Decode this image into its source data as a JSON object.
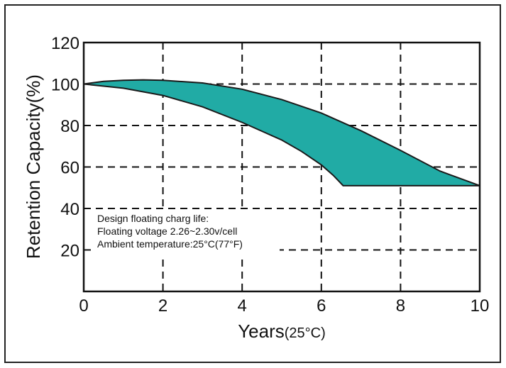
{
  "chart_data": {
    "type": "area",
    "title": "",
    "xlabel": "Years",
    "xlabel_unit": "(25°C)",
    "ylabel": "Retention Capacity(%)",
    "xlim": [
      0,
      10
    ],
    "ylim": [
      0,
      120
    ],
    "xticks": [
      0,
      2,
      4,
      6,
      8,
      10
    ],
    "xtick_labels": [
      "0",
      "2",
      "4",
      "6",
      "8",
      "10"
    ],
    "yticks": [
      20,
      40,
      60,
      80,
      100,
      120
    ],
    "ytick_labels": [
      "20",
      "40",
      "60",
      "80",
      "100",
      "120"
    ],
    "grid": true,
    "fill_color": "#21aba5",
    "upper_curve": {
      "x": [
        0,
        0.5,
        1,
        1.5,
        2,
        3,
        4,
        5,
        6,
        7,
        8,
        9,
        10
      ],
      "y": [
        100,
        101.3,
        101.8,
        102,
        101.8,
        100.5,
        97.5,
        92.5,
        86,
        77.5,
        68,
        58,
        51
      ]
    },
    "lower_curve": {
      "x": [
        0,
        1,
        2,
        3,
        4,
        5,
        5.5,
        6,
        6.3,
        6.55,
        8,
        10
      ],
      "y": [
        100,
        98,
        94.5,
        89,
        81.5,
        73,
        67.5,
        61,
        56,
        51,
        51,
        51
      ]
    },
    "annotations": [
      "Design floating charg life:",
      "Floating voltage 2.26~2.30v/cell",
      "Ambient temperature:25°C(77°F)"
    ]
  }
}
